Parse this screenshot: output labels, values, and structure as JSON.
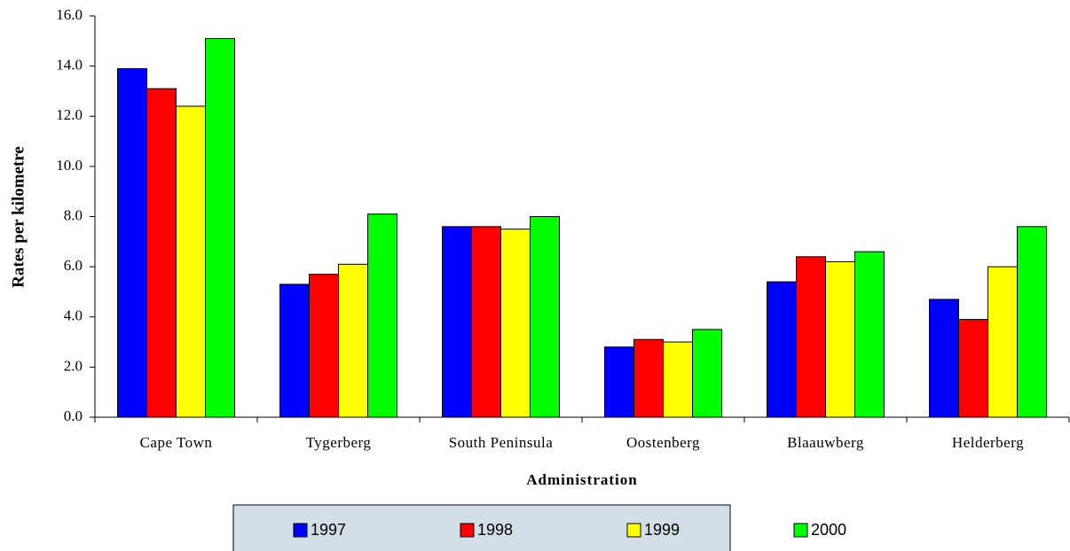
{
  "chart_data": {
    "type": "bar",
    "ylabel": "Rates per kilometre",
    "xlabel": "Administration",
    "categories": [
      "Cape Town",
      "Tygerberg",
      "South Peninsula",
      "Oostenberg",
      "Blaauwberg",
      "Helderberg"
    ],
    "series": [
      {
        "name": "1997",
        "color": "#0000ff",
        "values": [
          13.9,
          5.3,
          7.6,
          2.8,
          5.4,
          4.7
        ]
      },
      {
        "name": "1998",
        "color": "#ff0000",
        "values": [
          13.1,
          5.7,
          7.6,
          3.1,
          6.4,
          3.9
        ]
      },
      {
        "name": "1999",
        "color": "#ffff00",
        "values": [
          12.4,
          6.1,
          7.5,
          3.0,
          6.2,
          6.0
        ]
      },
      {
        "name": "2000",
        "color": "#00ff00",
        "values": [
          15.1,
          8.1,
          8.0,
          3.5,
          6.6,
          7.6
        ]
      }
    ],
    "ylim": [
      0,
      16
    ],
    "yticks": [
      {
        "value": 0,
        "label": "0.0"
      },
      {
        "value": 2,
        "label": "2.0"
      },
      {
        "value": 4,
        "label": "4.0"
      },
      {
        "value": 6,
        "label": "6.0"
      },
      {
        "value": 8,
        "label": "8.0"
      },
      {
        "value": 10,
        "label": "10.0"
      },
      {
        "value": 12,
        "label": "12.0"
      },
      {
        "value": 14,
        "label": "14.0"
      },
      {
        "value": 16,
        "label": "16.0"
      }
    ],
    "grid": false,
    "legend": "bottom"
  }
}
